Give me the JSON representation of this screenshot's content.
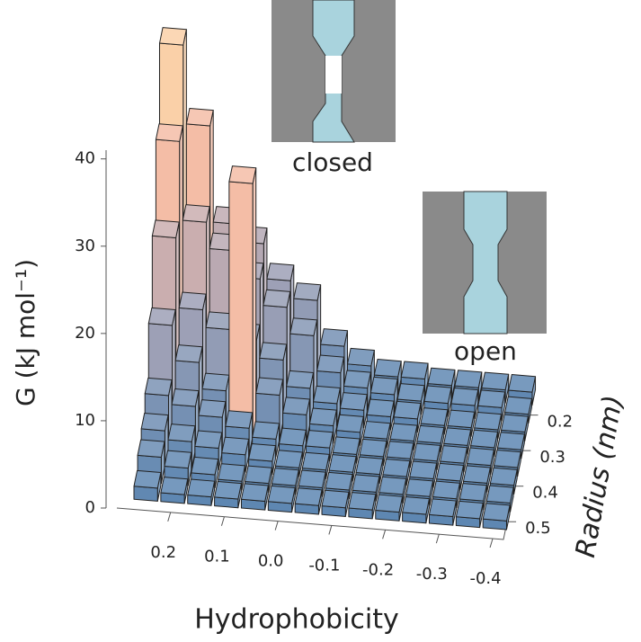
{
  "chart_data": {
    "type": "bar3d",
    "xlabel": "Hydrophobicity",
    "ylabel": "Radius (nm)",
    "zlabel": "G (kJ mol⁻¹)",
    "x": [
      0.25,
      0.2,
      0.15,
      0.1,
      0.05,
      0.0,
      -0.05,
      -0.1,
      -0.15,
      -0.2,
      -0.25,
      -0.3,
      -0.35,
      -0.4
    ],
    "y": [
      0.15,
      0.2,
      0.25,
      0.3,
      0.35,
      0.4,
      0.45,
      0.5
    ],
    "values": [
      [
        38,
        29,
        18,
        16,
        12,
        10,
        5,
        3,
        2,
        2,
        1.5,
        1.5,
        1.5,
        1.5
      ],
      [
        29,
        20,
        17,
        14,
        11,
        8,
        4,
        2.5,
        2,
        1.5,
        1.5,
        1.5,
        1.5,
        1
      ],
      [
        20,
        12,
        10,
        9,
        7,
        4,
        2.5,
        2,
        1.5,
        1.5,
        1,
        1,
        1,
        1
      ],
      [
        12,
        8,
        5,
        29,
        5,
        3,
        2,
        1.5,
        1,
        1,
        1,
        1,
        1,
        1
      ],
      [
        6,
        5,
        4,
        3,
        2,
        1.5,
        1.5,
        1,
        1,
        1,
        1,
        1,
        1,
        1
      ],
      [
        4,
        3,
        2.5,
        2,
        1.5,
        1,
        1,
        1,
        1,
        1,
        1,
        1,
        1,
        1
      ],
      [
        3,
        2,
        1.5,
        1,
        1,
        1,
        1,
        1,
        1,
        1,
        1,
        1,
        1,
        1
      ],
      [
        1.5,
        1,
        1,
        1,
        1,
        1,
        1,
        1,
        1,
        1,
        1,
        1,
        1,
        1
      ]
    ],
    "xlim": [
      0.3,
      -0.42
    ],
    "ylim": [
      0.12,
      0.55
    ],
    "zlim": [
      0,
      41
    ],
    "xticks": [
      0.2,
      0.1,
      {
        "value": 0,
        "label": "0.0"
      },
      -0.1,
      -0.2,
      -0.3,
      -0.4
    ],
    "yticks": [
      0.2,
      0.3,
      0.4,
      0.5
    ],
    "zticks": [
      0,
      10,
      20,
      30,
      40
    ],
    "colormap": [
      "#5885b2",
      "#a7a4b6",
      "#f3b9a6",
      "#fcd6a8"
    ],
    "annotations": [
      "closed",
      "open"
    ]
  }
}
